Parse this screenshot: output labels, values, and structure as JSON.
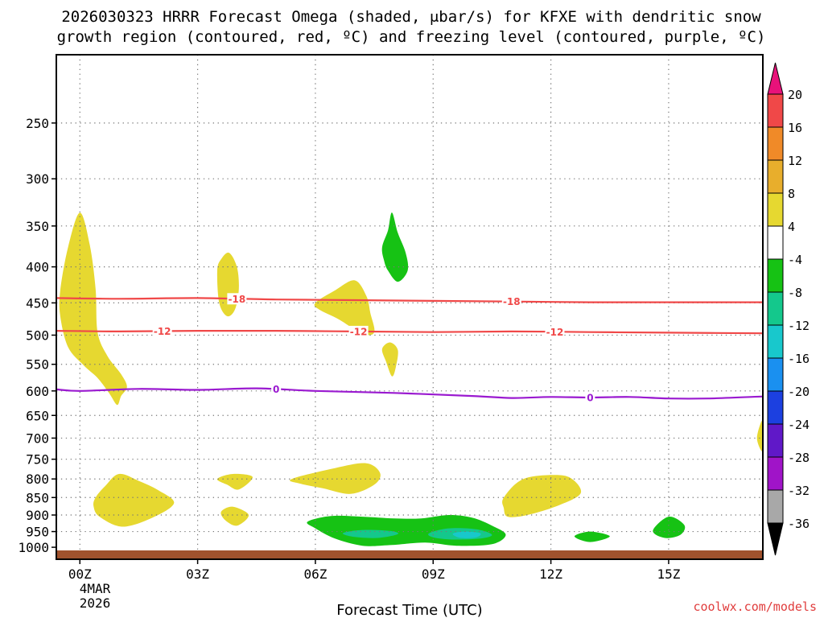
{
  "chart_data": {
    "type": "heatmap",
    "title_line1": "2026030323 HRRR Forecast Omega (shaded, μbar/s) for KFXE with dendritic snow",
    "title_line2": "growth region (contoured, red, ºC) and freezing level (contoured, purple, ºC)",
    "xlabel": "Forecast Time (UTC)",
    "credit": "coolwx.com/models",
    "date_label_line1": "4MAR",
    "date_label_line2": "2026",
    "x_range_hours": [
      -0.6,
      17.4
    ],
    "y_range_hpa": [
      1040,
      200
    ],
    "x_ticks": [
      {
        "hour": 0,
        "label": "00Z"
      },
      {
        "hour": 3,
        "label": "03Z"
      },
      {
        "hour": 6,
        "label": "06Z"
      },
      {
        "hour": 9,
        "label": "09Z"
      },
      {
        "hour": 12,
        "label": "12Z"
      },
      {
        "hour": 15,
        "label": "15Z"
      }
    ],
    "y_ticks": [
      {
        "p": 250,
        "label": "250"
      },
      {
        "p": 300,
        "label": "300"
      },
      {
        "p": 350,
        "label": "350"
      },
      {
        "p": 400,
        "label": "400"
      },
      {
        "p": 450,
        "label": "450"
      },
      {
        "p": 500,
        "label": "500"
      },
      {
        "p": 550,
        "label": "550"
      },
      {
        "p": 600,
        "label": "600"
      },
      {
        "p": 650,
        "label": "650"
      },
      {
        "p": 700,
        "label": "700"
      },
      {
        "p": 750,
        "label": "750"
      },
      {
        "p": 800,
        "label": "800"
      },
      {
        "p": 850,
        "label": "850"
      },
      {
        "p": 900,
        "label": "900"
      },
      {
        "p": 950,
        "label": "950"
      },
      {
        "p": 1000,
        "label": "1000"
      }
    ],
    "colorbar": [
      {
        "label": "20",
        "color": "#e8127a"
      },
      {
        "label": "16",
        "color": "#f04848"
      },
      {
        "label": "12",
        "color": "#f08a28"
      },
      {
        "label": "8",
        "color": "#e8ae2c"
      },
      {
        "label": "4",
        "color": "#e6d830"
      },
      {
        "label": "-4",
        "color": "#ffffff"
      },
      {
        "label": "-8",
        "color": "#16c214"
      },
      {
        "label": "-12",
        "color": "#14c88c"
      },
      {
        "label": "-16",
        "color": "#18c8cc"
      },
      {
        "label": "-20",
        "color": "#1a90f0"
      },
      {
        "label": "-24",
        "color": "#1c40e0"
      },
      {
        "label": "-28",
        "color": "#6018c8"
      },
      {
        "label": "-32",
        "color": "#a014c8"
      },
      {
        "label": "-36",
        "color": "#a8a8a8"
      },
      {
        "label": "",
        "color": "#000000"
      }
    ],
    "contours": [
      {
        "name": "dgz-minus18",
        "label": "-18",
        "color": "#f04848",
        "points": [
          [
            -0.6,
            443
          ],
          [
            1,
            444
          ],
          [
            3,
            443
          ],
          [
            5,
            445
          ],
          [
            7,
            446
          ],
          [
            9,
            447
          ],
          [
            11,
            448
          ],
          [
            13,
            449
          ],
          [
            15,
            449
          ],
          [
            17.4,
            449
          ]
        ],
        "label_hours": [
          4.0,
          11.0
        ]
      },
      {
        "name": "dgz-minus12",
        "label": "-12",
        "color": "#f04848",
        "points": [
          [
            -0.6,
            493
          ],
          [
            1,
            494
          ],
          [
            3,
            493
          ],
          [
            5,
            493
          ],
          [
            7,
            494
          ],
          [
            9,
            495
          ],
          [
            11,
            494
          ],
          [
            13,
            495
          ],
          [
            15,
            496
          ],
          [
            17.4,
            497
          ]
        ],
        "label_hours": [
          2.1,
          7.1,
          12.1
        ]
      },
      {
        "name": "freezing-level",
        "label": "0",
        "color": "#9a1ad0",
        "points": [
          [
            -0.6,
            597
          ],
          [
            0,
            600
          ],
          [
            1.5,
            596
          ],
          [
            3,
            598
          ],
          [
            4.5,
            595
          ],
          [
            6,
            600
          ],
          [
            8,
            604
          ],
          [
            10,
            610
          ],
          [
            11,
            614
          ],
          [
            12,
            612
          ],
          [
            13,
            613
          ],
          [
            14,
            612
          ],
          [
            15,
            615
          ],
          [
            16,
            615
          ],
          [
            17.4,
            611
          ]
        ],
        "label_hours": [
          5.0,
          13.0
        ]
      }
    ],
    "omega_regions": [
      {
        "name": "upward-motion-0z-tall",
        "level": "4",
        "color": "#e6d830",
        "points": [
          [
            -0.5,
            432
          ],
          [
            -0.3,
            375
          ],
          [
            0,
            335
          ],
          [
            0.25,
            372
          ],
          [
            0.4,
            430
          ],
          [
            0.45,
            495
          ],
          [
            0.7,
            535
          ],
          [
            1.05,
            568
          ],
          [
            1.2,
            592
          ],
          [
            1.05,
            610
          ],
          [
            0.95,
            628
          ],
          [
            0.75,
            605
          ],
          [
            0.45,
            575
          ],
          [
            0.1,
            552
          ],
          [
            -0.3,
            520
          ],
          [
            -0.5,
            470
          ]
        ]
      },
      {
        "name": "upward-motion-4z-small",
        "level": "4",
        "color": "#e6d830",
        "points": [
          [
            3.5,
            405
          ],
          [
            3.6,
            390
          ],
          [
            3.8,
            382
          ],
          [
            4,
            400
          ],
          [
            4.05,
            430
          ],
          [
            3.95,
            460
          ],
          [
            3.75,
            470
          ],
          [
            3.55,
            450
          ]
        ]
      },
      {
        "name": "upward-motion-6z",
        "level": "4",
        "color": "#e6d830",
        "points": [
          [
            6,
            450
          ],
          [
            6.5,
            432
          ],
          [
            7,
            418
          ],
          [
            7.3,
            440
          ],
          [
            7.4,
            465
          ],
          [
            7.5,
            495
          ],
          [
            7.2,
            498
          ],
          [
            6.6,
            475
          ],
          [
            6.1,
            460
          ]
        ]
      },
      {
        "name": "upward-motion-8z-small",
        "level": "4",
        "color": "#e6d830",
        "points": [
          [
            7.7,
            523
          ],
          [
            7.9,
            512
          ],
          [
            8.1,
            525
          ],
          [
            8.05,
            555
          ],
          [
            7.95,
            572
          ],
          [
            7.8,
            545
          ]
        ]
      },
      {
        "name": "downward-motion-8z-upper",
        "level": "-8",
        "color": "#16c214",
        "points": [
          [
            7.7,
            375
          ],
          [
            7.85,
            355
          ],
          [
            7.95,
            335
          ],
          [
            8.1,
            358
          ],
          [
            8.3,
            382
          ],
          [
            8.35,
            405
          ],
          [
            8.1,
            420
          ],
          [
            7.85,
            405
          ],
          [
            7.75,
            392
          ]
        ]
      },
      {
        "name": "upward-motion-1z-low",
        "level": "4",
        "color": "#e6d830",
        "points": [
          [
            0.4,
            850
          ],
          [
            0.65,
            818
          ],
          [
            1.0,
            787
          ],
          [
            1.5,
            805
          ],
          [
            2.0,
            830
          ],
          [
            2.4,
            865
          ],
          [
            1.9,
            905
          ],
          [
            1.1,
            935
          ],
          [
            0.5,
            905
          ],
          [
            0.35,
            875
          ]
        ]
      },
      {
        "name": "upward-motion-4z-800",
        "level": "4",
        "color": "#e6d830",
        "points": [
          [
            3.5,
            800
          ],
          [
            3.9,
            787
          ],
          [
            4.4,
            795
          ],
          [
            4.05,
            828
          ],
          [
            3.75,
            815
          ]
        ]
      },
      {
        "name": "upward-motion-4z-900",
        "level": "4",
        "color": "#e6d830",
        "points": [
          [
            3.6,
            890
          ],
          [
            3.9,
            876
          ],
          [
            4.3,
            900
          ],
          [
            4.0,
            932
          ],
          [
            3.7,
            915
          ]
        ]
      },
      {
        "name": "upward-motion-7z-800",
        "level": "4",
        "color": "#e6d830",
        "points": [
          [
            5.4,
            800
          ],
          [
            6.5,
            772
          ],
          [
            7.3,
            760
          ],
          [
            7.65,
            785
          ],
          [
            7.5,
            815
          ],
          [
            6.9,
            840
          ],
          [
            6.2,
            825
          ],
          [
            5.6,
            812
          ]
        ]
      },
      {
        "name": "upward-motion-11z-800",
        "level": "4",
        "color": "#e6d830",
        "points": [
          [
            10.8,
            850
          ],
          [
            11.3,
            800
          ],
          [
            12.2,
            790
          ],
          [
            12.6,
            805
          ],
          [
            12.75,
            840
          ],
          [
            12.2,
            872
          ],
          [
            11.4,
            900
          ],
          [
            10.9,
            905
          ],
          [
            10.8,
            880
          ]
        ]
      },
      {
        "name": "upward-motion-17z-700",
        "level": "4",
        "color": "#e6d830",
        "points": [
          [
            17.4,
            660
          ],
          [
            17.25,
            700
          ],
          [
            17.4,
            730
          ]
        ]
      },
      {
        "name": "downward-motion-low-broad",
        "level": "-8",
        "color": "#16c214",
        "points": [
          [
            5.8,
            920
          ],
          [
            6.4,
            903
          ],
          [
            7.2,
            905
          ],
          [
            8.0,
            910
          ],
          [
            8.7,
            910
          ],
          [
            9.4,
            900
          ],
          [
            10.0,
            908
          ],
          [
            10.5,
            932
          ],
          [
            10.85,
            960
          ],
          [
            10.5,
            990
          ],
          [
            9.6,
            995
          ],
          [
            8.8,
            985
          ],
          [
            7.9,
            993
          ],
          [
            7.2,
            995
          ],
          [
            6.5,
            972
          ],
          [
            6.0,
            940
          ]
        ]
      },
      {
        "name": "downward-motion-13z",
        "level": "-8",
        "color": "#16c214",
        "points": [
          [
            12.6,
            965
          ],
          [
            13.0,
            950
          ],
          [
            13.5,
            965
          ],
          [
            13.0,
            983
          ]
        ]
      },
      {
        "name": "downward-motion-15z",
        "level": "-8",
        "color": "#16c214",
        "points": [
          [
            14.6,
            947
          ],
          [
            15.0,
            905
          ],
          [
            15.4,
            930
          ],
          [
            15.3,
            960
          ],
          [
            14.9,
            970
          ]
        ]
      },
      {
        "name": "downward-motion-core-7z",
        "level": "-12",
        "color": "#14c88c",
        "points": [
          [
            6.7,
            955
          ],
          [
            7.2,
            945
          ],
          [
            7.9,
            948
          ],
          [
            8.1,
            958
          ],
          [
            7.6,
            970
          ],
          [
            7.0,
            967
          ]
        ]
      },
      {
        "name": "downward-motion-core-10z",
        "level": "-12",
        "color": "#14c88c",
        "points": [
          [
            8.9,
            955
          ],
          [
            9.4,
            940
          ],
          [
            10.1,
            943
          ],
          [
            10.5,
            960
          ],
          [
            10.2,
            972
          ],
          [
            9.5,
            975
          ],
          [
            9.0,
            968
          ]
        ]
      },
      {
        "name": "downward-motion-peak-10z",
        "level": "-16",
        "color": "#18c8cc",
        "points": [
          [
            9.5,
            957
          ],
          [
            9.8,
            950
          ],
          [
            10.2,
            955
          ],
          [
            10.1,
            968
          ],
          [
            9.7,
            970
          ]
        ]
      }
    ]
  }
}
